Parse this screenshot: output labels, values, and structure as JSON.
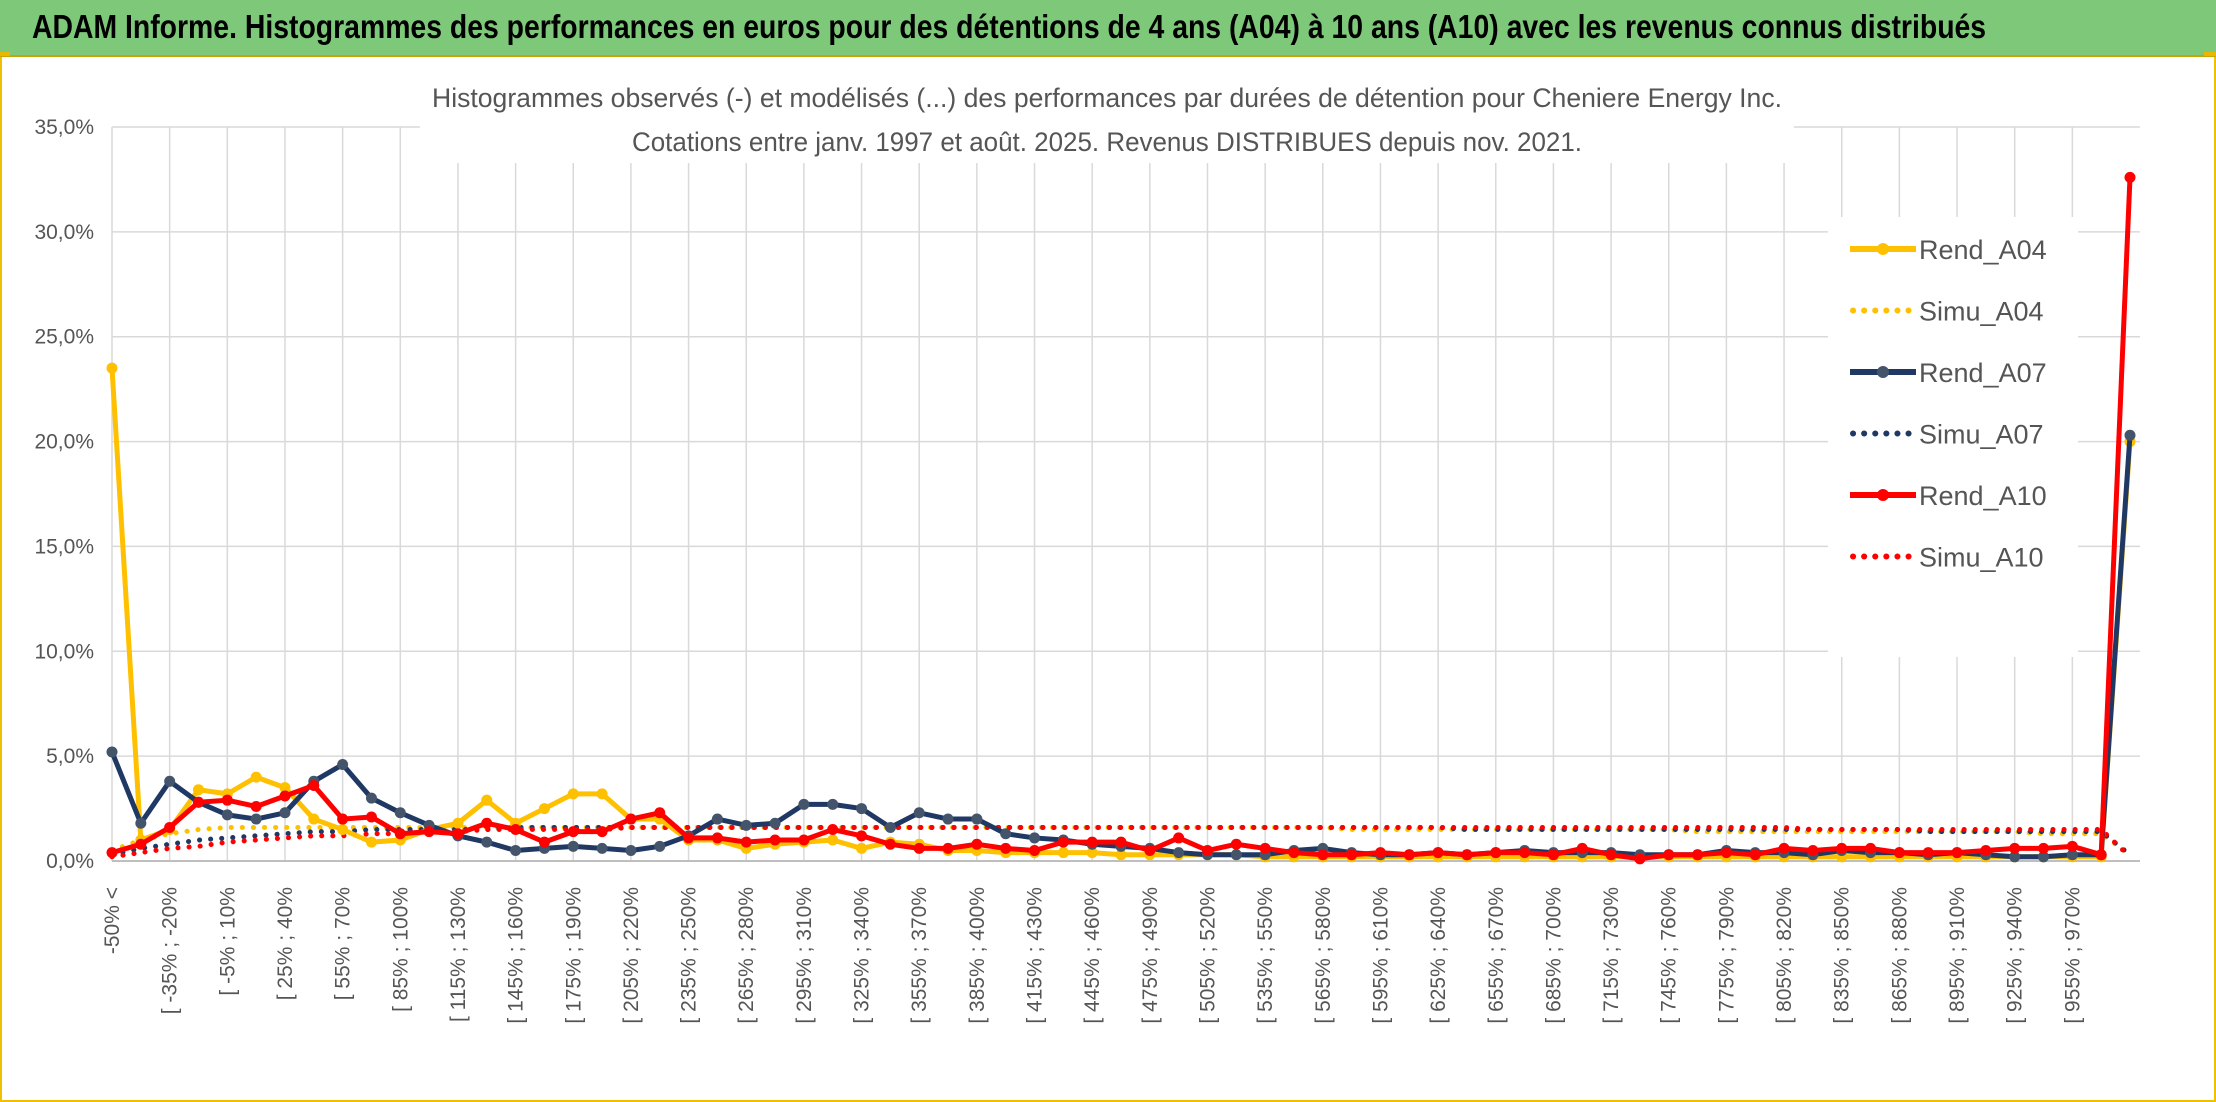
{
  "banner": {
    "title": "ADAM Informe. Histogrammes des performances en euros pour des détentions de 4 ans (A04) à 10 ans (A10) avec les revenus connus distribués"
  },
  "colors": {
    "banner_bg": "#7ec87a",
    "frame": "#f0c000",
    "a04": "#ffc000",
    "a07": "#1f3864",
    "a10": "#ff0000"
  },
  "chart_data": {
    "type": "line",
    "title": "Histogrammes observés (-) et modélisés (...) des performances par durées de détention pour Cheniere Energy Inc.",
    "subtitle": "Cotations entre janv. 1997 et août. 2025. Revenus DISTRIBUES depuis nov. 2021.",
    "xlabel": "",
    "ylabel": "",
    "ylim": [
      0,
      35
    ],
    "y_ticks": [
      "0,0%",
      "5,0%",
      "10,0%",
      "15,0%",
      "20,0%",
      "25,0%",
      "30,0%",
      "35,0%"
    ],
    "grid": true,
    "legend_position": "right",
    "x_tick_labels": [
      "-50% <",
      "[ -35% ; -20%",
      "[ -5% ; 10%",
      "[ 25% ; 40%",
      "[ 55% ; 70%",
      "[ 85% ; 100%",
      "[ 115% ; 130%",
      "[ 145% ; 160%",
      "[ 175% ; 190%",
      "[ 205% ; 220%",
      "[ 235% ; 250%",
      "[ 265% ; 280%",
      "[ 295% ; 310%",
      "[ 325% ; 340%",
      "[ 355% ; 370%",
      "[ 385% ; 400%",
      "[ 415% ; 430%",
      "[ 445% ; 460%",
      "[ 475% ; 490%",
      "[ 505% ; 520%",
      "[ 535% ; 550%",
      "[ 565% ; 580%",
      "[ 595% ; 610%",
      "[ 625% ; 640%",
      "[ 655% ; 670%",
      "[ 685% ; 700%",
      "[ 715% ; 730%",
      "[ 745% ; 760%",
      "[ 775% ; 790%",
      "[ 805% ; 820%",
      "[ 835% ; 850%",
      "[ 865% ; 880%",
      "[ 895% ; 910%",
      "[ 925% ; 940%",
      "[ 955% ; 970%"
    ],
    "series": [
      {
        "name": "Rend_A04",
        "style": "solid",
        "color": "#ffc000",
        "values": [
          23.5,
          1.0,
          1.5,
          3.4,
          3.2,
          4.0,
          3.5,
          2.0,
          1.5,
          0.9,
          1.0,
          1.5,
          1.8,
          2.9,
          1.8,
          2.5,
          3.2,
          3.2,
          2.0,
          2.0,
          1.0,
          1.0,
          0.6,
          0.8,
          0.9,
          1.0,
          0.6,
          0.9,
          0.8,
          0.5,
          0.5,
          0.4,
          0.4,
          0.4,
          0.4,
          0.3,
          0.3,
          0.3,
          0.3,
          0.3,
          0.2,
          0.2,
          0.2,
          0.2,
          0.2,
          0.2,
          0.2,
          0.2,
          0.2,
          0.2,
          0.2,
          0.2,
          0.2,
          0.2,
          0.2,
          0.2,
          0.2,
          0.2,
          0.2,
          0.2,
          0.2,
          0.2,
          0.2,
          0.2,
          0.2,
          0.2,
          0.2,
          0.2,
          0.2,
          0.2,
          20.0
        ]
      },
      {
        "name": "Simu_A04",
        "style": "dotted",
        "color": "#ffc000",
        "values": [
          0.5,
          1.0,
          1.3,
          1.5,
          1.6,
          1.6,
          1.6,
          1.6,
          1.6,
          1.6,
          1.6,
          1.6,
          1.6,
          1.6,
          1.6,
          1.6,
          1.6,
          1.6,
          1.6,
          1.6,
          1.6,
          1.6,
          1.6,
          1.6,
          1.6,
          1.6,
          1.6,
          1.6,
          1.6,
          1.6,
          1.6,
          1.6,
          1.6,
          1.6,
          1.6,
          1.6,
          1.6,
          1.6,
          1.6,
          1.6,
          1.6,
          1.6,
          1.6,
          1.5,
          1.5,
          1.5,
          1.5,
          1.5,
          1.5,
          1.5,
          1.5,
          1.5,
          1.5,
          1.5,
          1.5,
          1.4,
          1.4,
          1.4,
          1.4,
          1.4,
          1.4,
          1.4,
          1.4,
          1.4,
          1.4,
          1.4,
          1.4,
          1.3,
          1.3,
          1.3,
          0.3
        ]
      },
      {
        "name": "Rend_A07",
        "style": "solid",
        "color": "#1f3864",
        "values": [
          5.2,
          1.8,
          3.8,
          2.8,
          2.2,
          2.0,
          2.3,
          3.8,
          4.6,
          3.0,
          2.3,
          1.7,
          1.2,
          0.9,
          0.5,
          0.6,
          0.7,
          0.6,
          0.5,
          0.7,
          1.2,
          2.0,
          1.7,
          1.8,
          2.7,
          2.7,
          2.5,
          1.6,
          2.3,
          2.0,
          2.0,
          1.3,
          1.1,
          1.0,
          0.8,
          0.7,
          0.6,
          0.4,
          0.3,
          0.3,
          0.3,
          0.5,
          0.6,
          0.4,
          0.3,
          0.3,
          0.4,
          0.3,
          0.4,
          0.5,
          0.4,
          0.4,
          0.4,
          0.3,
          0.3,
          0.3,
          0.5,
          0.4,
          0.4,
          0.3,
          0.5,
          0.4,
          0.4,
          0.3,
          0.4,
          0.3,
          0.2,
          0.2,
          0.3,
          0.3,
          20.3
        ]
      },
      {
        "name": "Simu_A07",
        "style": "dotted",
        "color": "#1f3864",
        "values": [
          0.3,
          0.6,
          0.8,
          1.0,
          1.1,
          1.2,
          1.3,
          1.4,
          1.4,
          1.5,
          1.5,
          1.5,
          1.5,
          1.5,
          1.6,
          1.6,
          1.6,
          1.6,
          1.6,
          1.6,
          1.6,
          1.6,
          1.6,
          1.6,
          1.6,
          1.6,
          1.6,
          1.6,
          1.6,
          1.6,
          1.6,
          1.6,
          1.6,
          1.6,
          1.6,
          1.6,
          1.6,
          1.6,
          1.6,
          1.6,
          1.6,
          1.6,
          1.6,
          1.6,
          1.6,
          1.6,
          1.6,
          1.5,
          1.5,
          1.5,
          1.5,
          1.5,
          1.5,
          1.5,
          1.5,
          1.5,
          1.5,
          1.5,
          1.5,
          1.5,
          1.5,
          1.5,
          1.5,
          1.4,
          1.4,
          1.4,
          1.4,
          1.4,
          1.4,
          1.4,
          0.3
        ]
      },
      {
        "name": "Rend_A10",
        "style": "solid",
        "color": "#ff0000",
        "values": [
          0.4,
          0.8,
          1.6,
          2.8,
          2.9,
          2.6,
          3.1,
          3.6,
          2.0,
          2.1,
          1.3,
          1.4,
          1.3,
          1.8,
          1.5,
          0.9,
          1.4,
          1.4,
          2.0,
          2.3,
          1.1,
          1.1,
          0.9,
          1.0,
          1.0,
          1.5,
          1.2,
          0.8,
          0.6,
          0.6,
          0.8,
          0.6,
          0.5,
          0.9,
          0.9,
          0.9,
          0.5,
          1.1,
          0.5,
          0.8,
          0.6,
          0.4,
          0.3,
          0.3,
          0.4,
          0.3,
          0.4,
          0.3,
          0.4,
          0.4,
          0.3,
          0.6,
          0.3,
          0.1,
          0.3,
          0.3,
          0.4,
          0.3,
          0.6,
          0.5,
          0.6,
          0.6,
          0.4,
          0.4,
          0.4,
          0.5,
          0.6,
          0.6,
          0.7,
          0.3,
          32.6
        ]
      },
      {
        "name": "Simu_A10",
        "style": "dotted",
        "color": "#ff0000",
        "values": [
          0.2,
          0.4,
          0.6,
          0.7,
          0.9,
          1.0,
          1.1,
          1.2,
          1.2,
          1.3,
          1.3,
          1.4,
          1.4,
          1.5,
          1.5,
          1.5,
          1.5,
          1.5,
          1.6,
          1.6,
          1.6,
          1.6,
          1.6,
          1.6,
          1.6,
          1.6,
          1.6,
          1.6,
          1.6,
          1.6,
          1.6,
          1.6,
          1.6,
          1.6,
          1.6,
          1.6,
          1.6,
          1.6,
          1.6,
          1.6,
          1.6,
          1.6,
          1.6,
          1.6,
          1.6,
          1.6,
          1.6,
          1.6,
          1.6,
          1.6,
          1.6,
          1.6,
          1.6,
          1.6,
          1.6,
          1.6,
          1.6,
          1.6,
          1.6,
          1.5,
          1.5,
          1.5,
          1.5,
          1.5,
          1.5,
          1.5,
          1.5,
          1.5,
          1.5,
          1.5,
          0.2
        ]
      }
    ]
  }
}
